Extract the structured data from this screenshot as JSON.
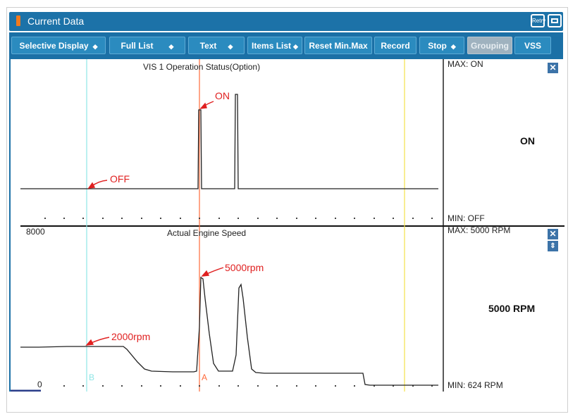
{
  "window": {
    "title": "Current Data",
    "retry_label": "Retry"
  },
  "toolbar": {
    "buttons": [
      {
        "label": "Selective Display",
        "dropdown": true,
        "enabled": true
      },
      {
        "label": "Full List",
        "dropdown": true,
        "enabled": true
      },
      {
        "label": "Text",
        "dropdown": true,
        "enabled": true
      },
      {
        "label": "Items List",
        "dropdown": true,
        "enabled": true
      },
      {
        "label": "Reset Min.Max",
        "dropdown": false,
        "enabled": true
      },
      {
        "label": "Record",
        "dropdown": false,
        "enabled": true
      },
      {
        "label": "Stop",
        "dropdown": true,
        "enabled": true
      },
      {
        "label": "Grouping",
        "dropdown": false,
        "enabled": false
      },
      {
        "label": "VSS",
        "dropdown": false,
        "enabled": true
      }
    ]
  },
  "graphs": [
    {
      "title": "VIS 1 Operation Status(Option)",
      "max_label": "MAX: ON",
      "min_label": "MIN: OFF",
      "current_value": "ON",
      "y_top_label": "",
      "y_bottom_label": "",
      "annotations": [
        "ON",
        "OFF"
      ]
    },
    {
      "title": "Actual Engine Speed",
      "max_label": "MAX:  5000 RPM",
      "min_label": "MIN:   624 RPM",
      "current_value": "5000 RPM",
      "y_top_label": "8000",
      "y_bottom_label": "0",
      "annotations": [
        "5000rpm",
        "2000rpm"
      ]
    }
  ],
  "cursors": {
    "a_label": "A",
    "b_label": "B"
  },
  "colors": {
    "titlebar": "#1c72a8",
    "toolbar": "#1b70a6",
    "button": "#2b8bbf",
    "cursor_a": "#ff5a2a",
    "cursor_b": "#7fe3e3",
    "cursor_y": "#f2e14a",
    "annotation": "#e02020"
  },
  "icons": {
    "retry": "retry-icon",
    "restore": "window-restore-icon",
    "close": "close-icon",
    "expand": "expand-vertical-icon"
  }
}
